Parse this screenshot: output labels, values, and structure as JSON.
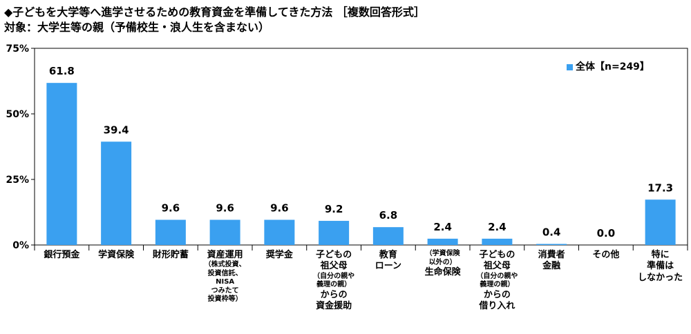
{
  "title": "◆子どもを大学等へ進学させるための教育資金を準備してきた方法 ［複数回答形式］",
  "subtitle": "対象：大学生等の親（予備校生・浪人生を含まない）",
  "colors": {
    "bar": "#3aa0f0",
    "axis": "#000000",
    "grid": "#000000"
  },
  "chart_data": {
    "type": "bar",
    "y_ticks": [
      "0%",
      "25%",
      "50%",
      "75%"
    ],
    "ylim": [
      0,
      75
    ],
    "legend": "全体【n=249】",
    "legend_position": "top-right",
    "categories": [
      {
        "lines": [
          "銀行預金"
        ],
        "sub": [],
        "tail": []
      },
      {
        "lines": [
          "学資保険"
        ],
        "sub": [],
        "tail": []
      },
      {
        "lines": [
          "財形貯蓄"
        ],
        "sub": [],
        "tail": []
      },
      {
        "lines": [
          "資産運用"
        ],
        "sub": [
          "（株式投資、",
          "投資信託、",
          "NISA",
          "つみたて",
          "投資枠等）"
        ],
        "tail": []
      },
      {
        "lines": [
          "奨学金"
        ],
        "sub": [],
        "tail": []
      },
      {
        "lines": [
          "子どもの",
          "祖父母"
        ],
        "sub": [
          "（自分の親や",
          "義理の親）"
        ],
        "tail": [
          "からの",
          "資金援助"
        ]
      },
      {
        "lines": [
          "教育",
          "ローン"
        ],
        "sub": [],
        "tail": []
      },
      {
        "lines": [],
        "sub": [
          "（学資保険",
          "以外の）"
        ],
        "tail": [
          "生命保険"
        ]
      },
      {
        "lines": [
          "子どもの",
          "祖父母"
        ],
        "sub": [
          "（自分の親や",
          "義理の親）"
        ],
        "tail": [
          "からの",
          "借り入れ"
        ]
      },
      {
        "lines": [
          "消費者",
          "金融"
        ],
        "sub": [],
        "tail": []
      },
      {
        "lines": [
          "その他"
        ],
        "sub": [],
        "tail": []
      },
      {
        "lines": [
          "特に",
          "準備は",
          "しなかった"
        ],
        "sub": [],
        "tail": []
      }
    ],
    "series": [
      {
        "name": "全体【n=249】",
        "values": [
          61.8,
          39.4,
          9.6,
          9.6,
          9.6,
          9.2,
          6.8,
          2.4,
          2.4,
          0.4,
          0.0,
          17.3
        ],
        "labels": [
          "61.8",
          "39.4",
          "9.6",
          "9.6",
          "9.6",
          "9.2",
          "6.8",
          "2.4",
          "2.4",
          "0.4",
          "0.0",
          "17.3"
        ]
      }
    ]
  }
}
